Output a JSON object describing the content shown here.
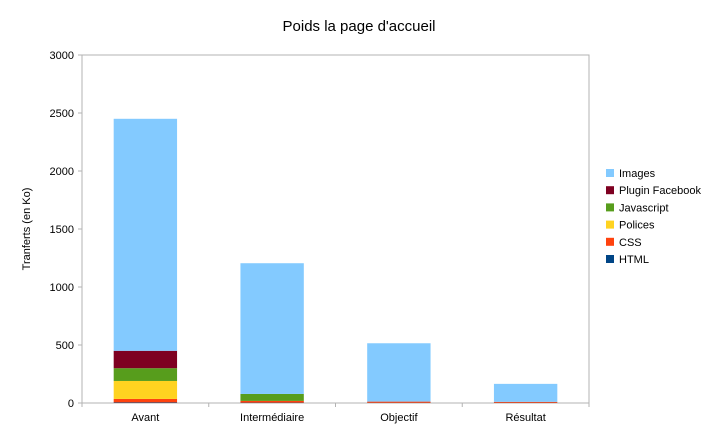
{
  "chart_data": {
    "type": "bar",
    "stacked": true,
    "title": "Poids la page d'accueil",
    "xlabel": "",
    "ylabel": "Tranferts (en Ko)",
    "ylim": [
      0,
      3000
    ],
    "yticks": [
      "0",
      "500",
      "1000",
      "1500",
      "2000",
      "2500",
      "3000"
    ],
    "grid": false,
    "legend_position": "right",
    "categories": [
      "Avant",
      "Intermédiaire",
      "Objectif",
      "Résultat"
    ],
    "series": [
      {
        "name": "HTML",
        "color": "#004586",
        "values": [
          5,
          3,
          2,
          2
        ]
      },
      {
        "name": "CSS",
        "color": "#ff420e",
        "values": [
          30,
          15,
          10,
          8
        ]
      },
      {
        "name": "Polices",
        "color": "#ffd320",
        "values": [
          155,
          0,
          0,
          0
        ]
      },
      {
        "name": "Javascript",
        "color": "#579d1c",
        "values": [
          110,
          60,
          0,
          0
        ]
      },
      {
        "name": "Plugin Facebook",
        "color": "#7e0021",
        "values": [
          150,
          0,
          0,
          0
        ]
      },
      {
        "name": "Images",
        "color": "#83caff",
        "values": [
          2000,
          1127,
          503,
          155
        ]
      }
    ],
    "legend_order": [
      "Images",
      "Plugin Facebook",
      "Javascript",
      "Polices",
      "CSS",
      "HTML"
    ]
  }
}
